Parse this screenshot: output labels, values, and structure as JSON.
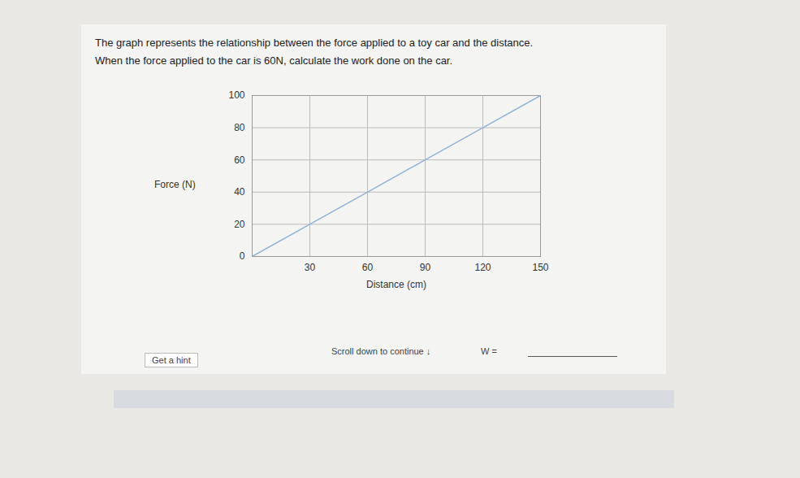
{
  "chart_data": {
    "type": "line",
    "title": "The graph represents the relationship between the force applied to a toy car and the distance.",
    "subtitle": "When the force applied to the car is 60N, calculate the work done on the car.",
    "x_label": "Distance (cm)",
    "y_label": "Force (N)",
    "x": [
      0,
      30,
      60,
      90,
      120,
      150
    ],
    "series": [
      {
        "name": "Force",
        "color": "#8fb3d9",
        "values": [
          0,
          20,
          40,
          60,
          80,
          100
        ]
      }
    ],
    "xlim": [
      0,
      150
    ],
    "xticks": [
      30,
      60,
      90,
      120,
      150
    ],
    "ylim": [
      0,
      100
    ],
    "yticks": [
      0,
      20,
      40,
      60,
      80,
      100
    ],
    "grid": true,
    "annotations": [
      "Get a hint",
      "Scroll down to continue ↓",
      "W ="
    ]
  }
}
